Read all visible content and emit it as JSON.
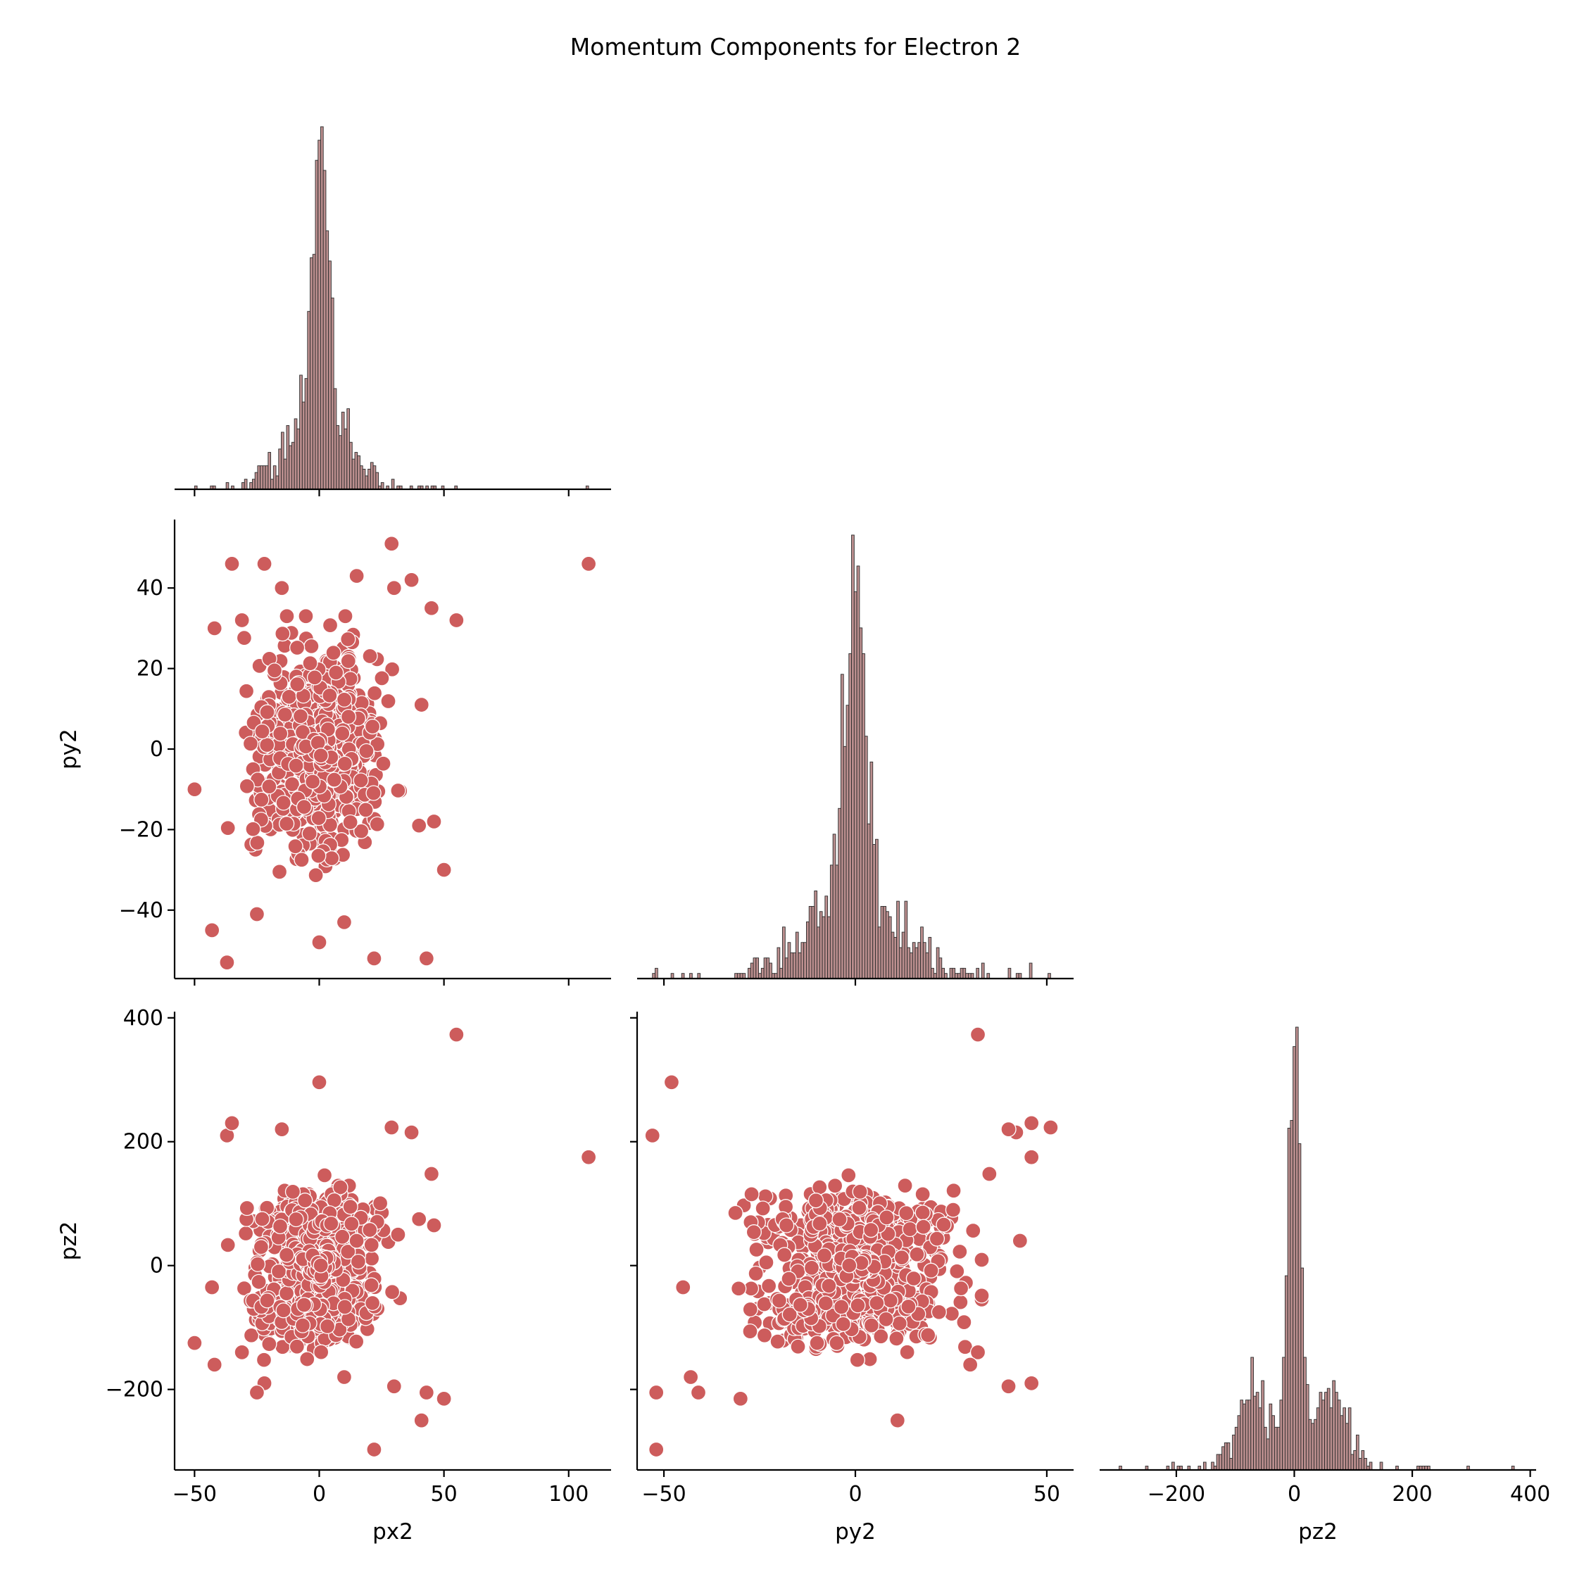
{
  "chart_data": {
    "type": "pairplot",
    "title": "Momentum Components for Electron 2",
    "variables": [
      "px2",
      "py2",
      "pz2"
    ],
    "colors": {
      "scatter_fill": "#cd5c5c",
      "scatter_edge": "#ffffff",
      "hist_fill": "#bc8f8f",
      "hist_edge": "#2b2b2b"
    },
    "corner": true,
    "axes": {
      "px2": {
        "range": [
          -58,
          117
        ],
        "ticks": [
          -50,
          0,
          50,
          100
        ],
        "tick_labels": [
          "−50",
          "0",
          "50",
          "100"
        ]
      },
      "py2": {
        "range": [
          -57,
          57
        ],
        "ticks": [
          -50,
          0,
          50
        ],
        "tick_labels": [
          "−50",
          "0",
          "50"
        ],
        "y_ticks": [
          -40,
          -20,
          0,
          20,
          40
        ],
        "y_tick_labels": [
          "−40",
          "−20",
          "0",
          "20",
          "40"
        ]
      },
      "pz2": {
        "range": [
          -330,
          410
        ],
        "ticks": [
          -200,
          0,
          200,
          400
        ],
        "tick_labels": [
          "−200",
          "0",
          "200",
          "400"
        ],
        "y_ticks": [
          -200,
          0,
          200,
          400
        ],
        "y_tick_labels": [
          "−200",
          "0",
          "200",
          "400"
        ]
      }
    },
    "panels": [
      {
        "row": 0,
        "col": 0,
        "kind": "hist",
        "variable": "px2"
      },
      {
        "row": 1,
        "col": 0,
        "kind": "scatter",
        "x": "px2",
        "y": "py2"
      },
      {
        "row": 1,
        "col": 1,
        "kind": "hist",
        "variable": "py2"
      },
      {
        "row": 2,
        "col": 0,
        "kind": "scatter",
        "x": "px2",
        "y": "pz2"
      },
      {
        "row": 2,
        "col": 1,
        "kind": "scatter",
        "x": "py2",
        "y": "pz2"
      },
      {
        "row": 2,
        "col": 2,
        "kind": "hist",
        "variable": "pz2"
      }
    ],
    "n_points": 1300,
    "distribution": {
      "px2": {
        "center": 0,
        "core_sd": 3,
        "body_sd": 12
      },
      "py2": {
        "center": 0,
        "core_sd": 2.5,
        "body_sd": 12
      },
      "pz2": {
        "center": 0,
        "core_sd": 10,
        "side_modes": [
          -65,
          65
        ],
        "side_sd": 30
      }
    },
    "outliers": [
      {
        "px2": 108,
        "py2": 46,
        "pz2": 175
      },
      {
        "px2": 55,
        "py2": 32,
        "pz2": 373
      },
      {
        "px2": 0,
        "py2": -48,
        "pz2": 296
      },
      {
        "px2": 43,
        "py2": -52,
        "pz2": -205
      },
      {
        "px2": 22,
        "py2": -52,
        "pz2": -297
      },
      {
        "px2": -50,
        "py2": -10,
        "pz2": -125
      },
      {
        "px2": 29,
        "py2": 51,
        "pz2": 223
      },
      {
        "px2": 50,
        "py2": -30,
        "pz2": -215
      },
      {
        "px2": 41,
        "py2": 11,
        "pz2": -250
      },
      {
        "px2": -37,
        "py2": -53,
        "pz2": 210
      },
      {
        "px2": -35,
        "py2": 46,
        "pz2": 230
      },
      {
        "px2": 45,
        "py2": 35,
        "pz2": 148
      },
      {
        "px2": -43,
        "py2": -45,
        "pz2": -35
      },
      {
        "px2": 37,
        "py2": 42,
        "pz2": 215
      },
      {
        "px2": 10,
        "py2": -43,
        "pz2": -180
      },
      {
        "px2": -22,
        "py2": 46,
        "pz2": -190
      },
      {
        "px2": -25,
        "py2": -41,
        "pz2": -205
      },
      {
        "px2": 15,
        "py2": 43,
        "pz2": 40
      },
      {
        "px2": -31,
        "py2": 32,
        "pz2": -140
      },
      {
        "px2": 30,
        "py2": 40,
        "pz2": -195
      },
      {
        "px2": -42,
        "py2": 30,
        "pz2": -160
      },
      {
        "px2": 40,
        "py2": -19,
        "pz2": 75
      },
      {
        "px2": 46,
        "py2": -18,
        "pz2": 65
      },
      {
        "px2": -15,
        "py2": 40,
        "pz2": 220
      }
    ]
  }
}
